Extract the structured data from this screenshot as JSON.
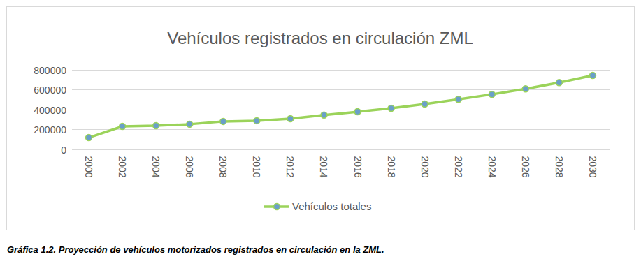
{
  "chart_data": {
    "type": "line",
    "title": "Vehículos registrados en circulación ZML",
    "caption": "Gráfica 1.2. Proyección de vehículos motorizados registrados en circulación en la ZML.",
    "categories": [
      "2000",
      "2002",
      "2004",
      "2006",
      "2008",
      "2010",
      "2012",
      "2014",
      "2016",
      "2018",
      "2020",
      "2022",
      "2024",
      "2026",
      "2028",
      "2030"
    ],
    "series": [
      {
        "name": "Vehículos totales",
        "color": "#9bd35a",
        "marker": "circle",
        "values": [
          115000,
          228000,
          235000,
          250000,
          278000,
          285000,
          305000,
          342000,
          375000,
          410000,
          453000,
          500000,
          550000,
          605000,
          668000,
          740000
        ]
      }
    ],
    "ylim": [
      0,
      800000
    ],
    "yticks": [
      0,
      200000,
      400000,
      600000,
      800000
    ],
    "grid": true,
    "legend": "bottom"
  }
}
